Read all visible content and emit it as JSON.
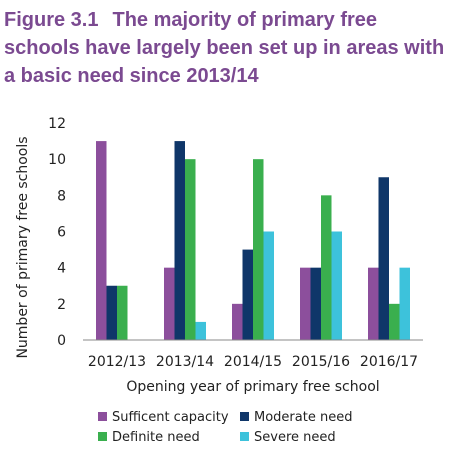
{
  "title": {
    "number": "Figure 3.1",
    "text": "The majority of primary free schools have largely been set up in areas with a basic need since 2013/14"
  },
  "colors": {
    "title": "#7B4A91",
    "axis": "#888888"
  },
  "chart_data": {
    "type": "bar",
    "title": "Figure 3.1 The majority of primary free schools have largely been set up in areas with a basic need since 2013/14",
    "xlabel": "Opening year of primary free school",
    "ylabel": "Number of primary free schools",
    "categories": [
      "2012/13",
      "2013/14",
      "2014/15",
      "2015/16",
      "2016/17"
    ],
    "ylim": [
      0,
      12
    ],
    "yticks": [
      0,
      2,
      4,
      6,
      8,
      10,
      12
    ],
    "grid": false,
    "legend_position": "bottom",
    "series": [
      {
        "name": "Sufficent capacity",
        "color": "#8C4F9C",
        "values": [
          11,
          4,
          2,
          4,
          4
        ]
      },
      {
        "name": "Moderate need",
        "color": "#0F3669",
        "values": [
          3,
          11,
          5,
          4,
          9
        ]
      },
      {
        "name": "Definite need",
        "color": "#3AAF4E",
        "values": [
          3,
          10,
          10,
          8,
          2
        ]
      },
      {
        "name": "Severe need",
        "color": "#3DC2DB",
        "values": [
          0,
          1,
          6,
          6,
          4
        ]
      }
    ]
  }
}
